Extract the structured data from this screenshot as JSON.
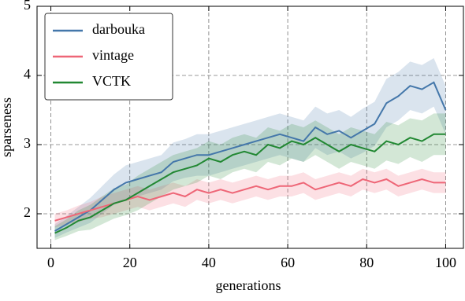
{
  "chart_data": {
    "type": "line",
    "xlabel": "generations",
    "ylabel": "sparseness",
    "x": [
      1,
      4,
      7,
      10,
      13,
      16,
      19,
      22,
      25,
      28,
      31,
      34,
      37,
      40,
      43,
      46,
      49,
      52,
      55,
      58,
      61,
      64,
      67,
      70,
      73,
      76,
      79,
      82,
      85,
      88,
      91,
      94,
      97,
      100
    ],
    "series": [
      {
        "name": "darbouka",
        "color": "#4477aa",
        "values": [
          1.75,
          1.85,
          1.95,
          2.05,
          2.2,
          2.35,
          2.45,
          2.5,
          2.55,
          2.6,
          2.75,
          2.8,
          2.85,
          2.85,
          2.9,
          2.95,
          3.0,
          3.05,
          3.1,
          3.15,
          3.1,
          3.05,
          3.25,
          3.15,
          3.2,
          3.1,
          3.2,
          3.3,
          3.6,
          3.7,
          3.85,
          3.8,
          3.9,
          3.5
        ],
        "error": [
          0.1,
          0.12,
          0.15,
          0.18,
          0.2,
          0.22,
          0.25,
          0.25,
          0.25,
          0.25,
          0.28,
          0.28,
          0.3,
          0.3,
          0.3,
          0.3,
          0.3,
          0.3,
          0.3,
          0.3,
          0.3,
          0.3,
          0.3,
          0.3,
          0.3,
          0.3,
          0.32,
          0.32,
          0.35,
          0.35,
          0.35,
          0.35,
          0.35,
          0.35
        ]
      },
      {
        "name": "vintage",
        "color": "#ee6677",
        "values": [
          1.9,
          1.95,
          2.0,
          2.05,
          2.1,
          2.15,
          2.2,
          2.25,
          2.2,
          2.25,
          2.3,
          2.25,
          2.35,
          2.3,
          2.35,
          2.3,
          2.35,
          2.4,
          2.35,
          2.4,
          2.4,
          2.45,
          2.35,
          2.4,
          2.45,
          2.4,
          2.5,
          2.45,
          2.5,
          2.4,
          2.45,
          2.5,
          2.45,
          2.45
        ],
        "error": [
          0.1,
          0.1,
          0.12,
          0.12,
          0.15,
          0.15,
          0.15,
          0.15,
          0.15,
          0.15,
          0.15,
          0.15,
          0.15,
          0.15,
          0.15,
          0.15,
          0.15,
          0.15,
          0.15,
          0.15,
          0.15,
          0.15,
          0.15,
          0.15,
          0.15,
          0.15,
          0.15,
          0.15,
          0.15,
          0.15,
          0.15,
          0.15,
          0.15,
          0.15
        ]
      },
      {
        "name": "VCTK",
        "color": "#228833",
        "values": [
          1.72,
          1.8,
          1.9,
          1.95,
          2.05,
          2.15,
          2.2,
          2.3,
          2.4,
          2.5,
          2.6,
          2.65,
          2.7,
          2.8,
          2.75,
          2.85,
          2.9,
          2.85,
          3.0,
          2.95,
          3.05,
          3.0,
          3.1,
          3.0,
          2.9,
          3.0,
          2.95,
          2.9,
          3.05,
          3.0,
          3.1,
          3.05,
          3.15,
          3.15
        ],
        "error": [
          0.1,
          0.12,
          0.15,
          0.18,
          0.2,
          0.22,
          0.22,
          0.25,
          0.25,
          0.25,
          0.25,
          0.25,
          0.25,
          0.25,
          0.25,
          0.25,
          0.25,
          0.25,
          0.25,
          0.25,
          0.25,
          0.25,
          0.25,
          0.25,
          0.25,
          0.25,
          0.25,
          0.25,
          0.28,
          0.28,
          0.28,
          0.3,
          0.3,
          0.3
        ]
      }
    ],
    "xlim": [
      -3.5,
      104.5
    ],
    "ylim": [
      1.5,
      5
    ],
    "xticks": [
      0,
      20,
      40,
      60,
      80,
      100
    ],
    "yticks": [
      2,
      3,
      4,
      5
    ],
    "grid": true,
    "legend": "upper left"
  }
}
